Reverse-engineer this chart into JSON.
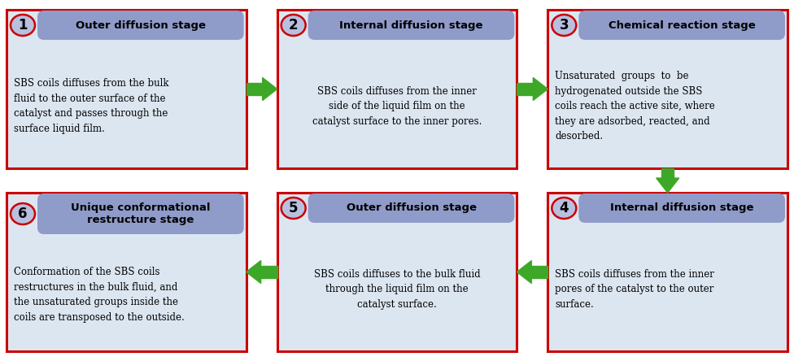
{
  "bg_color": "#ffffff",
  "box_bg": "#dce6f1",
  "box_border": "#cc0000",
  "header_bg": "#8f9bc8",
  "circle_bg": "#b8c0e0",
  "circle_border": "#cc0000",
  "arrow_color": "#3da828",
  "fig_w": 9.76,
  "fig_h": 4.44,
  "dpi": 100,
  "boxes": [
    {
      "num": "1",
      "title": "Outer diffusion stage",
      "title_lines": 1,
      "body": "SBS coils diffuses from the bulk\nfluid to the outer surface of the\ncatalyst and passes through the\nsurface liquid film.",
      "body_align": "left",
      "col": 0,
      "row": 0
    },
    {
      "num": "2",
      "title": "Internal diffusion stage",
      "title_lines": 1,
      "body": "SBS coils diffuses from the inner\nside of the liquid film on the\ncatalyst surface to the inner pores.",
      "body_align": "center",
      "col": 1,
      "row": 0
    },
    {
      "num": "3",
      "title": "Chemical reaction stage",
      "title_lines": 1,
      "body": "Unsaturated  groups  to  be\nhydrogenated outside the SBS\ncoils reach the active site, where\nthey are adsorbed, reacted, and\ndesorbed.",
      "body_align": "left",
      "col": 2,
      "row": 0
    },
    {
      "num": "4",
      "title": "Internal diffusion stage",
      "title_lines": 1,
      "body": "SBS coils diffuses from the inner\npores of the catalyst to the outer\nsurface.",
      "body_align": "left",
      "col": 2,
      "row": 1
    },
    {
      "num": "5",
      "title": "Outer diffusion stage",
      "title_lines": 1,
      "body": "SBS coils diffuses to the bulk fluid\nthrough the liquid film on the\ncatalyst surface.",
      "body_align": "center",
      "col": 1,
      "row": 1
    },
    {
      "num": "6",
      "title": "Unique conformational\nrestructure stage",
      "title_lines": 2,
      "body": "Conformation of the SBS coils\nrestructures in the bulk fluid, and\nthe unsaturated groups inside the\ncoils are transposed to the outside.",
      "body_align": "left",
      "col": 0,
      "row": 1
    }
  ]
}
